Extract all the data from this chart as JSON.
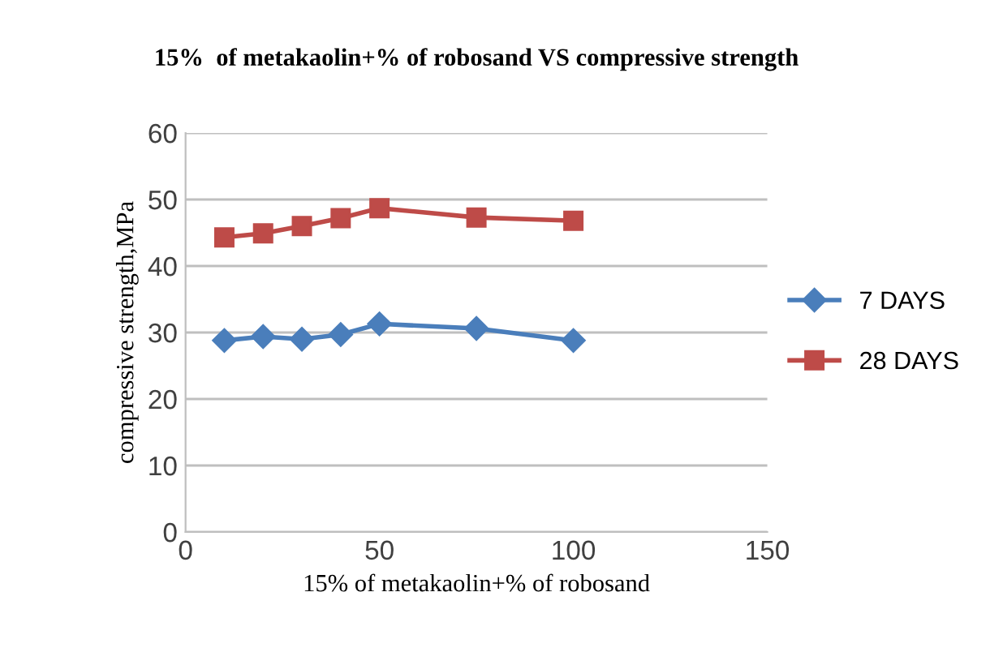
{
  "chart_data": {
    "type": "line",
    "title": "15%  of metakaolin+% of robosand VS compressive strength",
    "xlabel": "15% of metakaolin+% of robosand",
    "ylabel": "compressive strength,MPa",
    "x": [
      10,
      20,
      30,
      40,
      50,
      75,
      100
    ],
    "series": [
      {
        "name": "7 DAYS",
        "color": "#4a7ebb",
        "marker": "diamond",
        "values": [
          28.8,
          29.4,
          29.0,
          29.7,
          31.3,
          30.6,
          28.8
        ]
      },
      {
        "name": "28 DAYS",
        "color": "#be4b48",
        "marker": "square",
        "values": [
          44.3,
          44.9,
          46.0,
          47.2,
          48.7,
          47.3,
          46.8
        ]
      }
    ],
    "xlim": [
      0,
      150
    ],
    "xticks": [
      0,
      50,
      100,
      150
    ],
    "ylim": [
      0,
      60
    ],
    "yticks": [
      0,
      10,
      20,
      30,
      40,
      50,
      60
    ],
    "grid": "y",
    "legend": "right",
    "line_style": "solid"
  }
}
